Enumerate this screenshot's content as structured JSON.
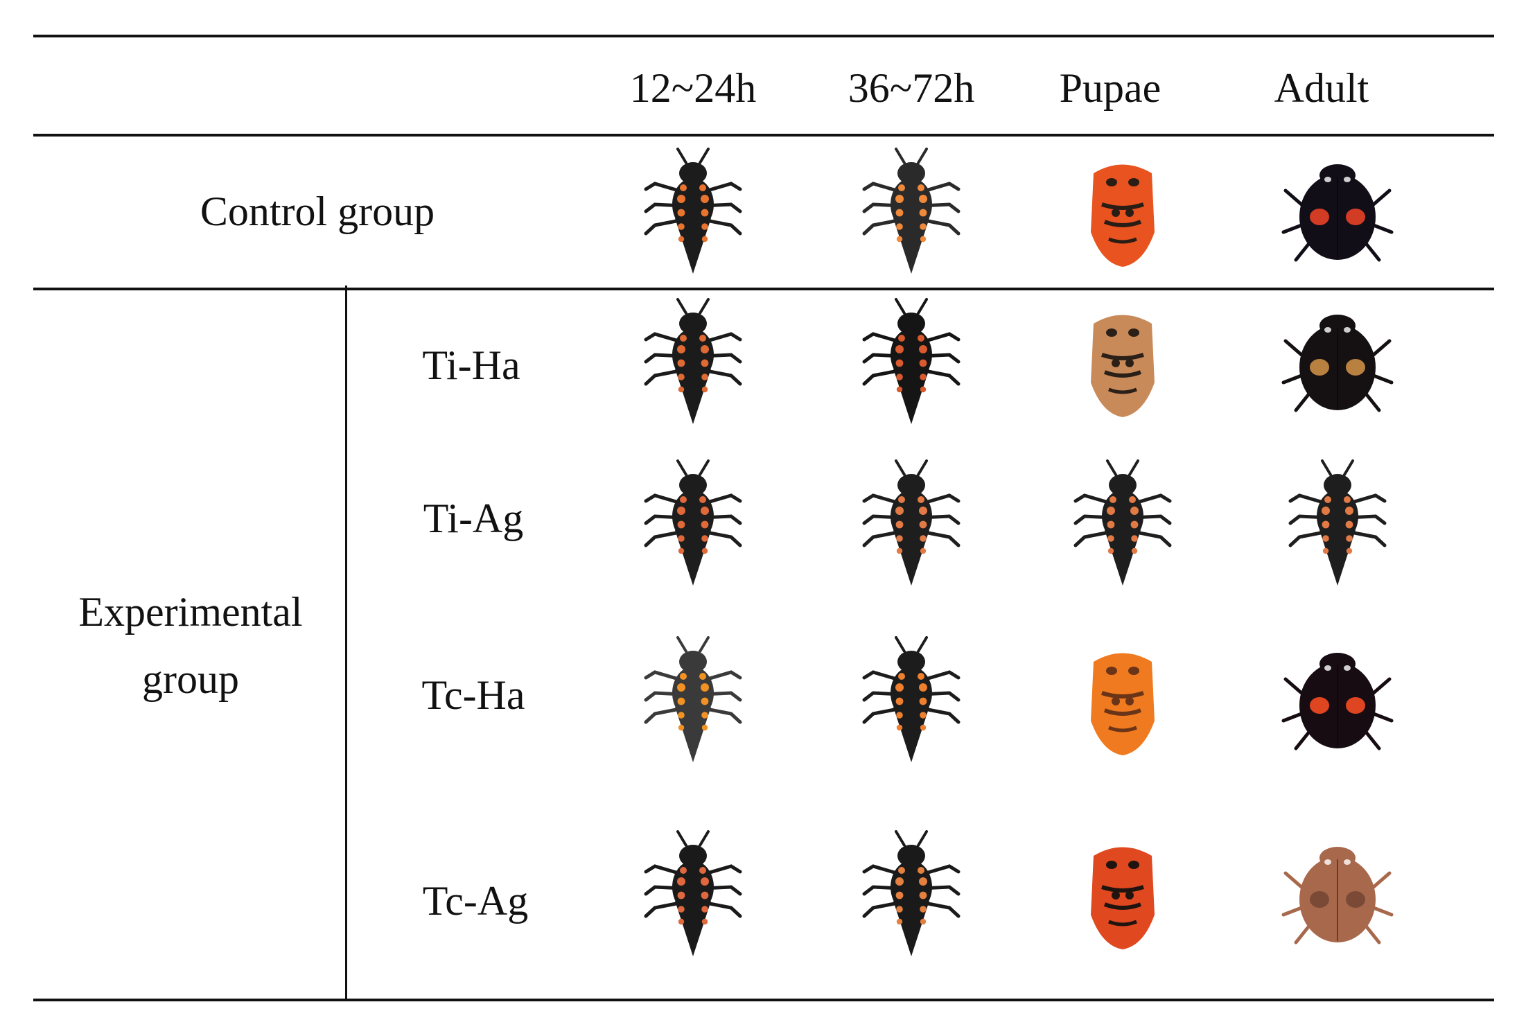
{
  "header": {
    "columns": [
      "12~24h",
      "36~72h",
      "Pupae",
      "Adult"
    ]
  },
  "rows": {
    "control_label": "Control group",
    "experimental_label_line1": "Experimental",
    "experimental_label_line2": "group",
    "treatments": [
      "Ti-Ha",
      "Ti-Ag",
      "Tc-Ha",
      "Tc-Ag"
    ]
  },
  "specimens": [
    {
      "row": "Control group",
      "stage": "12~24h",
      "kind": "larva",
      "body": "#1c1c1c",
      "accent": "#e8742f"
    },
    {
      "row": "Control group",
      "stage": "36~72h",
      "kind": "larva",
      "body": "#2a2a2a",
      "accent": "#f08a3a"
    },
    {
      "row": "Control group",
      "stage": "Pupae",
      "kind": "pupa",
      "body": "#e8531f",
      "accent": "#2a1d16"
    },
    {
      "row": "Control group",
      "stage": "Adult",
      "kind": "adult",
      "body": "#120e18",
      "accent": "#d23b24"
    },
    {
      "row": "Ti-Ha",
      "stage": "12~24h",
      "kind": "larva",
      "body": "#1b1b1b",
      "accent": "#e06a33"
    },
    {
      "row": "Ti-Ha",
      "stage": "36~72h",
      "kind": "larva",
      "body": "#151515",
      "accent": "#d85a2e"
    },
    {
      "row": "Ti-Ha",
      "stage": "Pupae",
      "kind": "pupa",
      "body": "#c98a5a",
      "accent": "#2b2018"
    },
    {
      "row": "Ti-Ha",
      "stage": "Adult",
      "kind": "adult",
      "body": "#151012",
      "accent": "#b9813f"
    },
    {
      "row": "Ti-Ag",
      "stage": "12~24h",
      "kind": "larva",
      "body": "#1d1d1d",
      "accent": "#e0693a"
    },
    {
      "row": "Ti-Ag",
      "stage": "36~72h",
      "kind": "larva",
      "body": "#1e1e1e",
      "accent": "#e27a45"
    },
    {
      "row": "Ti-Ag",
      "stage": "Pupae",
      "kind": "larva",
      "body": "#1e1e1e",
      "accent": "#e27a45"
    },
    {
      "row": "Ti-Ag",
      "stage": "Adult",
      "kind": "larva",
      "body": "#1e1e1e",
      "accent": "#e27a45"
    },
    {
      "row": "Tc-Ha",
      "stage": "12~24h",
      "kind": "larva",
      "body": "#3a3a3a",
      "accent": "#f39224"
    },
    {
      "row": "Tc-Ha",
      "stage": "36~72h",
      "kind": "larva",
      "body": "#1c1c1c",
      "accent": "#ee7f2f"
    },
    {
      "row": "Tc-Ha",
      "stage": "Pupae",
      "kind": "pupa",
      "body": "#f07a1f",
      "accent": "#6a3418"
    },
    {
      "row": "Tc-Ha",
      "stage": "Adult",
      "kind": "adult",
      "body": "#160c12",
      "accent": "#e04521"
    },
    {
      "row": "Tc-Ag",
      "stage": "12~24h",
      "kind": "larva",
      "body": "#1a1a1a",
      "accent": "#e0683f"
    },
    {
      "row": "Tc-Ag",
      "stage": "36~72h",
      "kind": "larva",
      "body": "#1a1a1a",
      "accent": "#e48040"
    },
    {
      "row": "Tc-Ag",
      "stage": "Pupae",
      "kind": "pupa",
      "body": "#e0481f",
      "accent": "#1f140f"
    },
    {
      "row": "Tc-Ag",
      "stage": "Adult",
      "kind": "adult",
      "body": "#a8684c",
      "accent": "#7a4a36"
    }
  ]
}
